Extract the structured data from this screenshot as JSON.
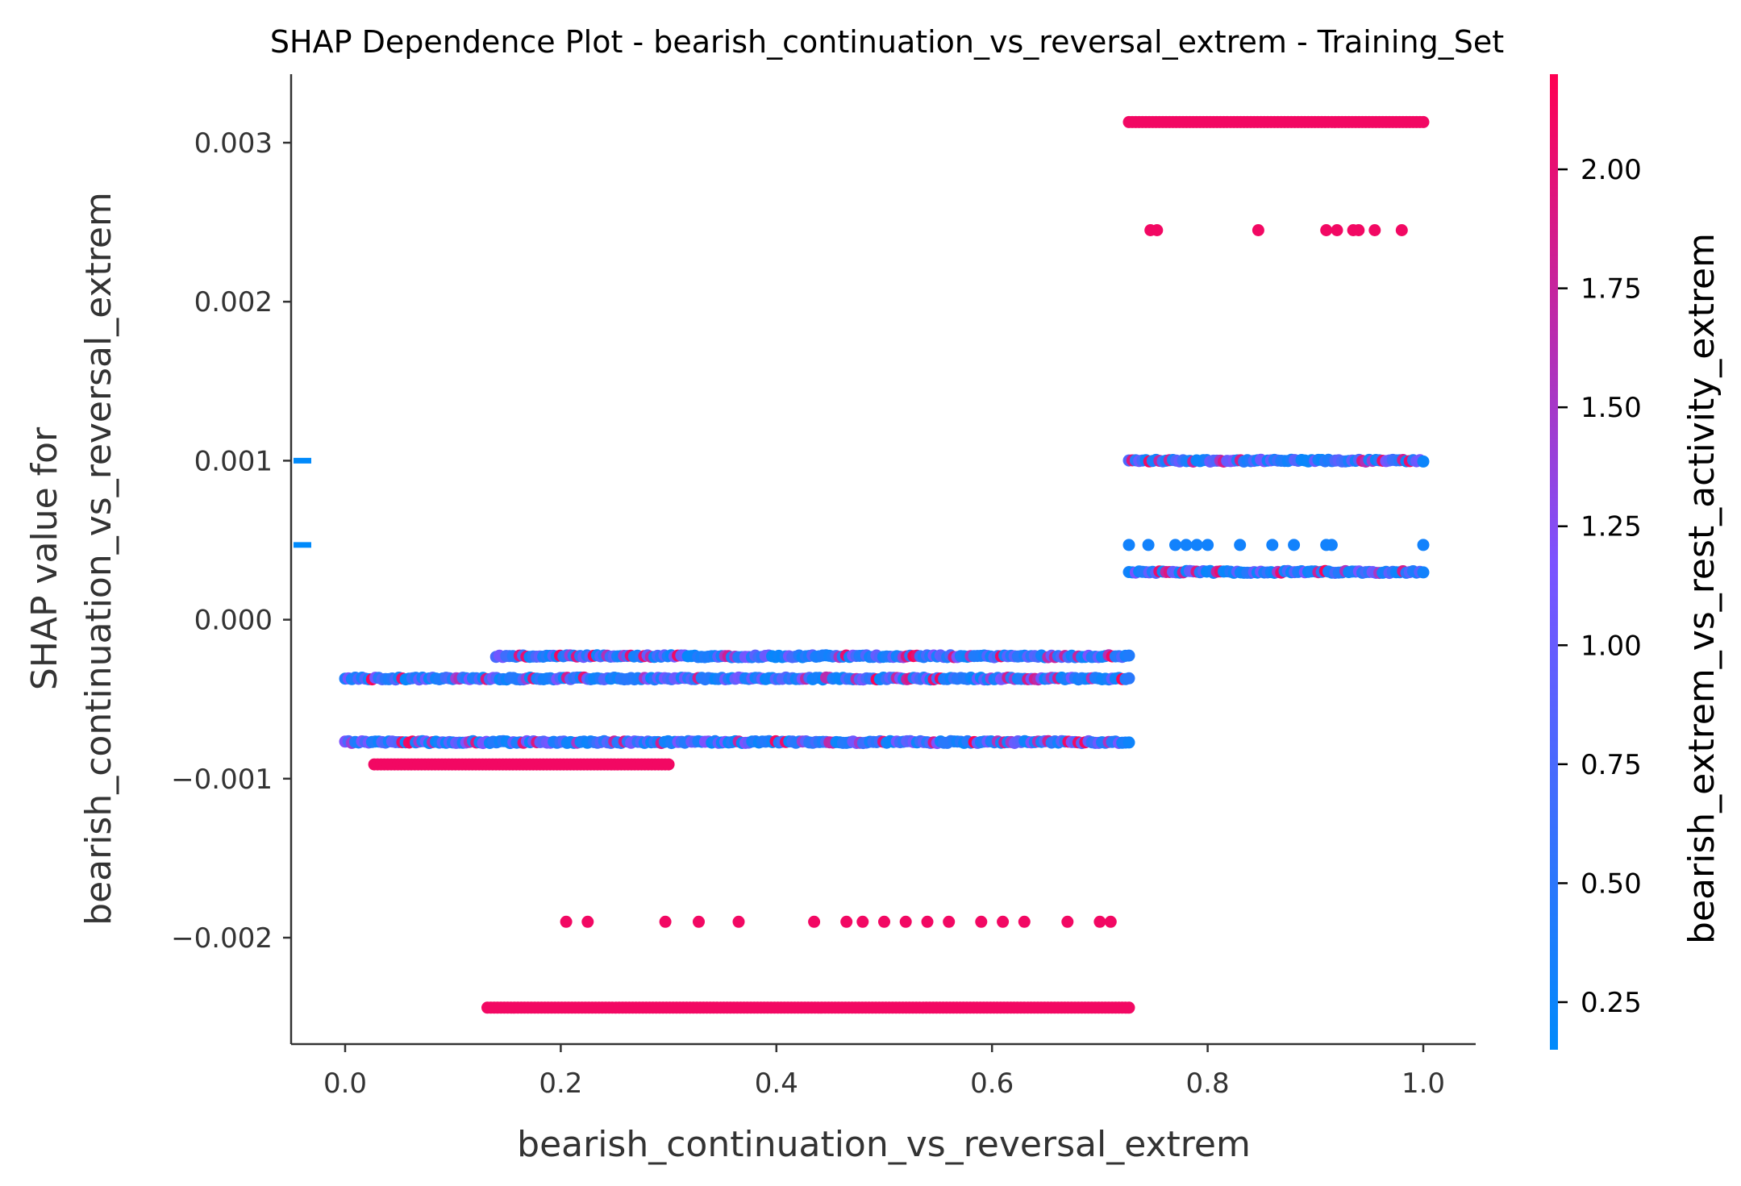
{
  "chart_data": {
    "type": "scatter",
    "title": "SHAP Dependence Plot - bearish_continuation_vs_reversal_extrem - Training_Set",
    "xlabel": "bearish_continuation_vs_reversal_extrem",
    "ylabel_lines": [
      "SHAP value for",
      "bearish_continuation_vs_reversal_extrem"
    ],
    "xlim": [
      -0.05,
      1.05
    ],
    "ylim": [
      -0.00272,
      0.00342
    ],
    "x_ticks": [
      0.0,
      0.2,
      0.4,
      0.6,
      0.8,
      1.0
    ],
    "x_tick_labels": [
      "0.0",
      "0.2",
      "0.4",
      "0.6",
      "0.8",
      "1.0"
    ],
    "y_ticks": [
      -0.002,
      -0.001,
      0.0,
      0.001,
      0.002,
      0.003
    ],
    "y_tick_labels": [
      "−0.002",
      "−0.001",
      "0.000",
      "0.001",
      "0.002",
      "0.003"
    ],
    "colorbar": {
      "label": "bearish_extrem_vs_rest_activity_extrem",
      "range": [
        0.15,
        2.2
      ],
      "ticks": [
        0.25,
        0.5,
        0.75,
        1.0,
        1.25,
        1.5,
        1.75,
        2.0
      ],
      "tick_labels": [
        "0.25",
        "0.50",
        "0.75",
        "1.00",
        "1.25",
        "1.50",
        "1.75",
        "2.00"
      ],
      "colors": [
        "#008afb",
        "#7c52ff",
        "#ff0052"
      ]
    },
    "nan_markers": [
      0.001,
      0.00047
    ],
    "bands": [
      {
        "y": 0.00313,
        "x": [
          0.727,
          1.0
        ],
        "color_value": 2.1
      },
      {
        "y": 0.00245,
        "x": [
          0.747,
          0.753,
          0.847,
          0.91,
          0.92,
          0.935,
          0.94,
          0.955,
          0.98
        ],
        "color_value": 2.1
      },
      {
        "y": 0.001,
        "x": [
          0.727,
          1.0
        ],
        "color_value": "mixed"
      },
      {
        "y": 0.00047,
        "x": [
          0.727,
          0.745,
          0.77,
          0.78,
          0.79,
          0.8,
          0.83,
          0.86,
          0.88,
          0.91,
          0.915,
          1.0
        ],
        "color_value": 0.3
      },
      {
        "y": 0.0003,
        "x": [
          0.727,
          1.0
        ],
        "color_value": "mixed"
      },
      {
        "y": -0.00023,
        "x": [
          0.14,
          0.727
        ],
        "color_value": "mixed"
      },
      {
        "y": -0.00037,
        "x": [
          0.0,
          0.727
        ],
        "color_value": "mixed"
      },
      {
        "y": -0.00077,
        "x": [
          0.0,
          0.727
        ],
        "color_value": "mixed"
      },
      {
        "y": -0.00091,
        "x": [
          0.027,
          0.3
        ],
        "color_value": 2.1
      },
      {
        "y": -0.0019,
        "x": [
          0.205,
          0.225,
          0.297,
          0.328,
          0.365,
          0.435,
          0.465,
          0.48,
          0.5,
          0.52,
          0.54,
          0.56,
          0.59,
          0.61,
          0.63,
          0.67,
          0.7,
          0.71
        ],
        "color_value": 2.1
      },
      {
        "y": -0.00244,
        "x": [
          0.132,
          0.727
        ],
        "color_value": 2.1
      }
    ]
  }
}
